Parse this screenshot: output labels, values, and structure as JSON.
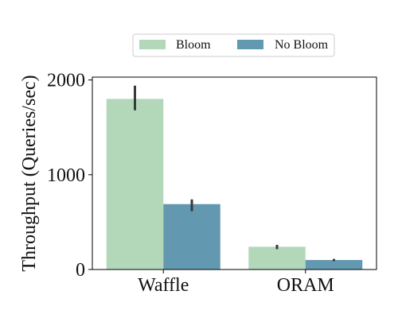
{
  "chart_data": {
    "type": "bar",
    "categories": [
      "Waffle",
      "ORAM"
    ],
    "series": [
      {
        "name": "Bloom",
        "values": [
          1800,
          240
        ],
        "error": [
          [
            1680,
            1940
          ],
          [
            215,
            260
          ]
        ],
        "color": "#b2d8b9"
      },
      {
        "name": "No Bloom",
        "values": [
          690,
          100
        ],
        "error": [
          [
            615,
            740
          ],
          [
            88,
            112
          ]
        ],
        "color": "#6299b0"
      }
    ],
    "ylabel": "Throughput (Queries/sec)",
    "xlabel": "",
    "ylim": [
      0,
      2030
    ],
    "yticks": [
      0,
      1000,
      2000
    ],
    "legend_position": "top-center",
    "grid": false,
    "error_bar_color": "#3a3a3a"
  }
}
